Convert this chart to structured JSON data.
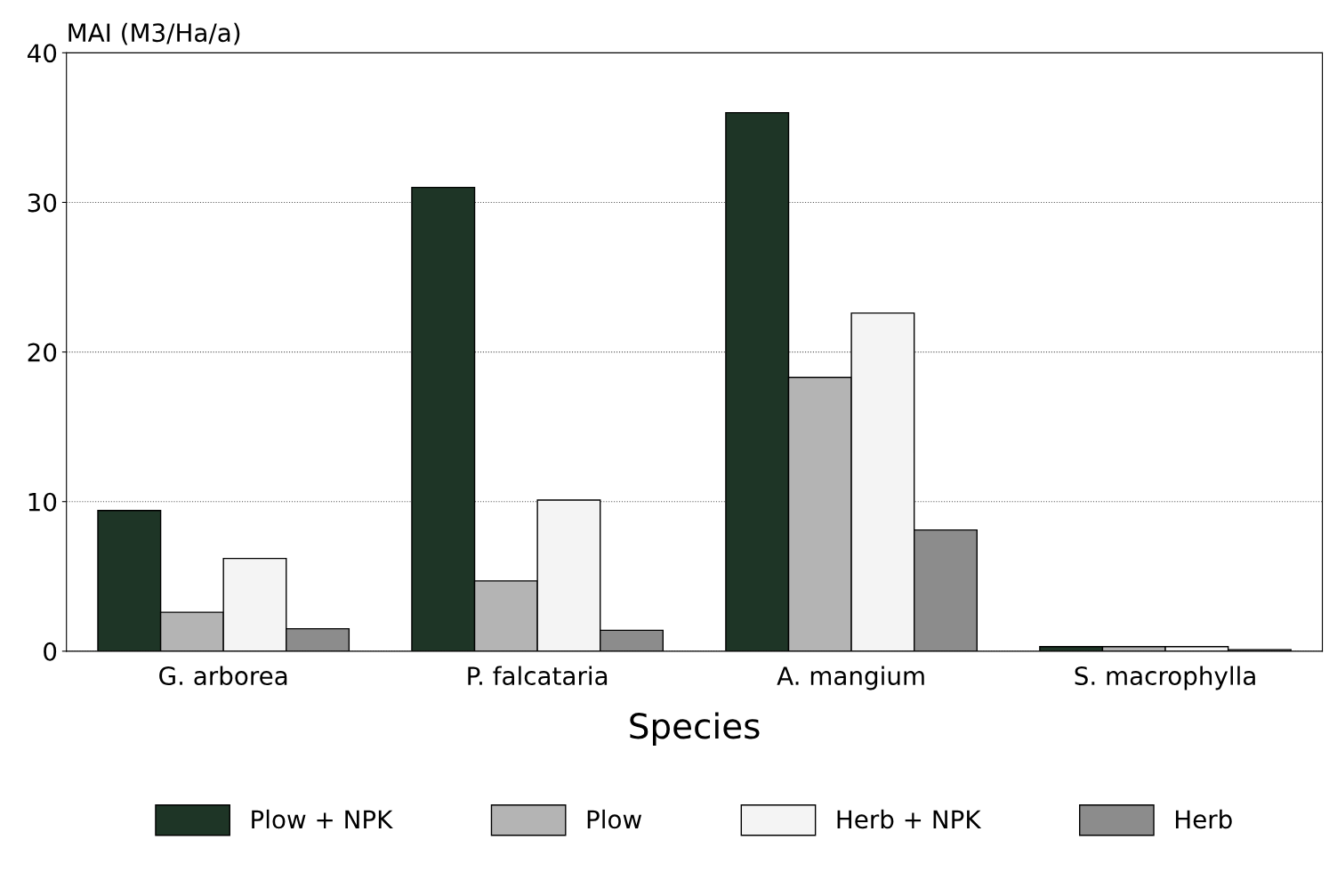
{
  "chart_data": {
    "type": "bar",
    "xlabel": "Species",
    "ylabel": "MAI (M3/Ha/a)",
    "categories": [
      "G. arborea",
      "P. falcataria",
      "A. mangium",
      "S. macrophylla"
    ],
    "series": [
      {
        "name": "Plow + NPK",
        "color": "#1e3526",
        "values": [
          9.4,
          31,
          36,
          0.3
        ]
      },
      {
        "name": "Plow",
        "color": "#b4b4b4",
        "values": [
          2.6,
          4.7,
          18.3,
          0.3
        ]
      },
      {
        "name": "Herb + NPK",
        "color": "#f4f4f4",
        "values": [
          6.2,
          10.1,
          22.6,
          0.3
        ]
      },
      {
        "name": "Herb",
        "color": "#8c8c8c",
        "values": [
          1.5,
          1.4,
          8.1,
          0.1
        ]
      }
    ],
    "ylim": [
      0,
      40
    ],
    "yticks": [
      0,
      10,
      20,
      30,
      40
    ],
    "grid": "y",
    "legend": "bottom"
  }
}
